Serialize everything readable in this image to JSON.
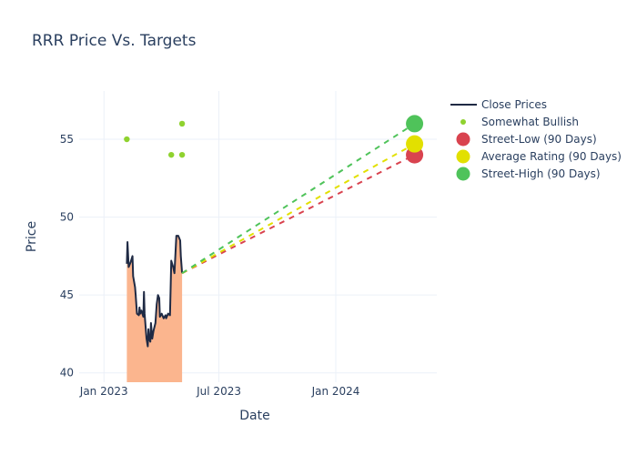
{
  "chart_data": {
    "type": "line",
    "title": "RRR Price Vs. Targets",
    "xlabel": "Date",
    "ylabel": "Price",
    "xlim": [
      "2022-11-23",
      "2024-06-08"
    ],
    "ylim": [
      39.4,
      58.1
    ],
    "x_ticks": [
      {
        "date": "2023-01-01",
        "label": "Jan 2023"
      },
      {
        "date": "2023-07-01",
        "label": "Jul 2023"
      },
      {
        "date": "2024-01-01",
        "label": "Jan 2024"
      }
    ],
    "y_ticks": [
      40,
      45,
      50,
      55
    ],
    "grid": true,
    "legend_position": "top-right",
    "colors": {
      "close": "#1f2a44",
      "fill": "#fbb58e",
      "bullish": "#8fd22f",
      "street_low": "#d9434f",
      "average": "#e2e000",
      "street_high": "#4fc35a"
    },
    "series": [
      {
        "name": "Close Prices",
        "kind": "line-filled",
        "points": [
          [
            "2023-02-06",
            47.0
          ],
          [
            "2023-02-07",
            48.4
          ],
          [
            "2023-02-09",
            46.8
          ],
          [
            "2023-02-12",
            47.1
          ],
          [
            "2023-02-15",
            47.5
          ],
          [
            "2023-02-16",
            46.2
          ],
          [
            "2023-02-19",
            45.5
          ],
          [
            "2023-02-20",
            45.0
          ],
          [
            "2023-02-22",
            43.8
          ],
          [
            "2023-02-25",
            43.7
          ],
          [
            "2023-02-26",
            44.2
          ],
          [
            "2023-02-27",
            43.8
          ],
          [
            "2023-03-01",
            44.0
          ],
          [
            "2023-03-04",
            43.6
          ],
          [
            "2023-03-05",
            45.2
          ],
          [
            "2023-03-06",
            43.8
          ],
          [
            "2023-03-09",
            42.2
          ],
          [
            "2023-03-11",
            41.7
          ],
          [
            "2023-03-12",
            42.8
          ],
          [
            "2023-03-13",
            42.2
          ],
          [
            "2023-03-15",
            42.0
          ],
          [
            "2023-03-16",
            43.2
          ],
          [
            "2023-03-18",
            42.2
          ],
          [
            "2023-03-20",
            42.7
          ],
          [
            "2023-03-23",
            43.2
          ],
          [
            "2023-03-25",
            44.4
          ],
          [
            "2023-03-27",
            45.0
          ],
          [
            "2023-03-29",
            44.8
          ],
          [
            "2023-03-30",
            43.6
          ],
          [
            "2023-04-02",
            43.8
          ],
          [
            "2023-04-05",
            43.5
          ],
          [
            "2023-04-08",
            43.7
          ],
          [
            "2023-04-09",
            43.5
          ],
          [
            "2023-04-12",
            43.8
          ],
          [
            "2023-04-15",
            43.7
          ],
          [
            "2023-04-16",
            45.4
          ],
          [
            "2023-04-17",
            47.2
          ],
          [
            "2023-04-20",
            46.8
          ],
          [
            "2023-04-22",
            46.4
          ],
          [
            "2023-04-25",
            48.8
          ],
          [
            "2023-04-28",
            48.8
          ],
          [
            "2023-05-01",
            48.5
          ],
          [
            "2023-05-02",
            47.5
          ],
          [
            "2023-05-04",
            46.4
          ]
        ]
      },
      {
        "name": "Somewhat Bullish",
        "kind": "markers",
        "points": [
          [
            "2023-02-06",
            55
          ],
          [
            "2023-04-17",
            54
          ],
          [
            "2023-05-04",
            56
          ],
          [
            "2023-05-04",
            54
          ]
        ]
      },
      {
        "name": "Street-Low (90 Days)",
        "kind": "target",
        "points": [
          [
            "2023-05-04",
            46.4
          ],
          [
            "2024-05-04",
            54
          ]
        ]
      },
      {
        "name": "Average Rating (90 Days)",
        "kind": "target",
        "points": [
          [
            "2023-05-04",
            46.4
          ],
          [
            "2024-05-04",
            54.7
          ]
        ]
      },
      {
        "name": "Street-High (90 Days)",
        "kind": "target",
        "points": [
          [
            "2023-05-04",
            46.4
          ],
          [
            "2024-05-04",
            56
          ]
        ]
      }
    ]
  }
}
